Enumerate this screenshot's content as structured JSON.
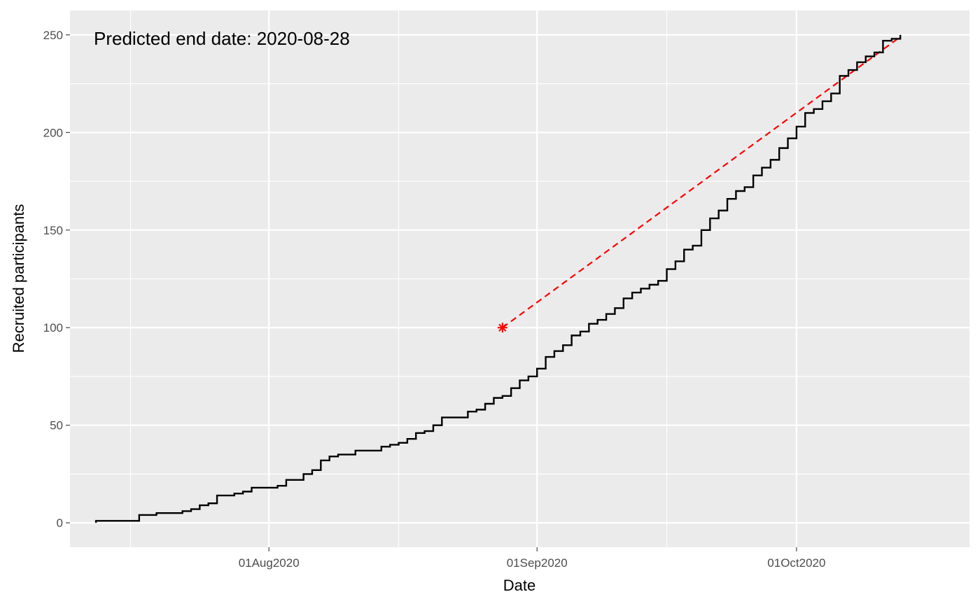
{
  "chart_data": {
    "type": "line",
    "xlabel": "Date",
    "ylabel": "Recruited participants",
    "annotation": "Predicted end date: 2020-08-28",
    "xlim": [
      "2020-07-09",
      "2020-10-21"
    ],
    "ylim": [
      -12.5,
      262.5
    ],
    "x_ticks": [
      {
        "date": "2020-08-01",
        "label": "01Aug2020"
      },
      {
        "date": "2020-09-01",
        "label": "01Sep2020"
      },
      {
        "date": "2020-10-01",
        "label": "01Oct2020"
      }
    ],
    "x_minor_ticks": [
      "2020-07-16",
      "2020-08-16",
      "2020-09-16"
    ],
    "y_ticks": [
      0,
      50,
      100,
      150,
      200,
      250
    ],
    "y_minor_ticks": [
      25,
      75,
      125,
      175,
      225
    ],
    "grid": true,
    "colors": {
      "panel": "#ebebeb",
      "grid": "#ffffff",
      "step_line": "#000000",
      "prediction": "#ff0000"
    },
    "series": [
      {
        "style": "step",
        "points": [
          [
            "2020-07-12",
            0
          ],
          [
            "2020-07-12",
            1
          ],
          [
            "2020-07-17",
            4
          ],
          [
            "2020-07-19",
            5
          ],
          [
            "2020-07-22",
            6
          ],
          [
            "2020-07-23",
            7
          ],
          [
            "2020-07-24",
            9
          ],
          [
            "2020-07-25",
            10
          ],
          [
            "2020-07-26",
            14
          ],
          [
            "2020-07-28",
            15
          ],
          [
            "2020-07-29",
            16
          ],
          [
            "2020-07-30",
            18
          ],
          [
            "2020-08-02",
            19
          ],
          [
            "2020-08-03",
            22
          ],
          [
            "2020-08-05",
            25
          ],
          [
            "2020-08-06",
            27
          ],
          [
            "2020-08-07",
            32
          ],
          [
            "2020-08-08",
            34
          ],
          [
            "2020-08-09",
            35
          ],
          [
            "2020-08-11",
            37
          ],
          [
            "2020-08-14",
            39
          ],
          [
            "2020-08-15",
            40
          ],
          [
            "2020-08-16",
            41
          ],
          [
            "2020-08-17",
            43
          ],
          [
            "2020-08-18",
            46
          ],
          [
            "2020-08-19",
            47
          ],
          [
            "2020-08-20",
            50
          ],
          [
            "2020-08-21",
            54
          ],
          [
            "2020-08-24",
            57
          ],
          [
            "2020-08-25",
            58
          ],
          [
            "2020-08-26",
            61
          ],
          [
            "2020-08-27",
            64
          ],
          [
            "2020-08-28",
            65
          ],
          [
            "2020-08-29",
            69
          ],
          [
            "2020-08-30",
            73
          ],
          [
            "2020-08-31",
            75
          ],
          [
            "2020-09-01",
            79
          ],
          [
            "2020-09-02",
            85
          ],
          [
            "2020-09-03",
            88
          ],
          [
            "2020-09-04",
            91
          ],
          [
            "2020-09-05",
            96
          ],
          [
            "2020-09-06",
            98
          ],
          [
            "2020-09-07",
            102
          ],
          [
            "2020-09-08",
            104
          ],
          [
            "2020-09-09",
            107
          ],
          [
            "2020-09-10",
            110
          ],
          [
            "2020-09-11",
            115
          ],
          [
            "2020-09-12",
            118
          ],
          [
            "2020-09-13",
            120
          ],
          [
            "2020-09-14",
            122
          ],
          [
            "2020-09-15",
            124
          ],
          [
            "2020-09-16",
            130
          ],
          [
            "2020-09-17",
            134
          ],
          [
            "2020-09-18",
            140
          ],
          [
            "2020-09-19",
            142
          ],
          [
            "2020-09-20",
            150
          ],
          [
            "2020-09-21",
            156
          ],
          [
            "2020-09-22",
            160
          ],
          [
            "2020-09-23",
            166
          ],
          [
            "2020-09-24",
            170
          ],
          [
            "2020-09-25",
            172
          ],
          [
            "2020-09-26",
            178
          ],
          [
            "2020-09-27",
            182
          ],
          [
            "2020-09-28",
            186
          ],
          [
            "2020-09-29",
            192
          ],
          [
            "2020-09-30",
            197
          ],
          [
            "2020-10-01",
            203
          ],
          [
            "2020-10-02",
            210
          ],
          [
            "2020-10-03",
            212
          ],
          [
            "2020-10-04",
            216
          ],
          [
            "2020-10-05",
            220
          ],
          [
            "2020-10-06",
            229
          ],
          [
            "2020-10-07",
            232
          ],
          [
            "2020-10-08",
            236
          ],
          [
            "2020-10-09",
            239
          ],
          [
            "2020-10-10",
            241
          ],
          [
            "2020-10-11",
            247
          ],
          [
            "2020-10-12",
            248
          ],
          [
            "2020-10-13",
            250
          ]
        ]
      },
      {
        "style": "dashed-line",
        "points": [
          [
            "2020-08-28",
            100
          ],
          [
            "2020-10-13",
            249
          ]
        ]
      }
    ],
    "marker": {
      "date": "2020-08-28",
      "value": 100,
      "shape": "asterisk"
    }
  }
}
